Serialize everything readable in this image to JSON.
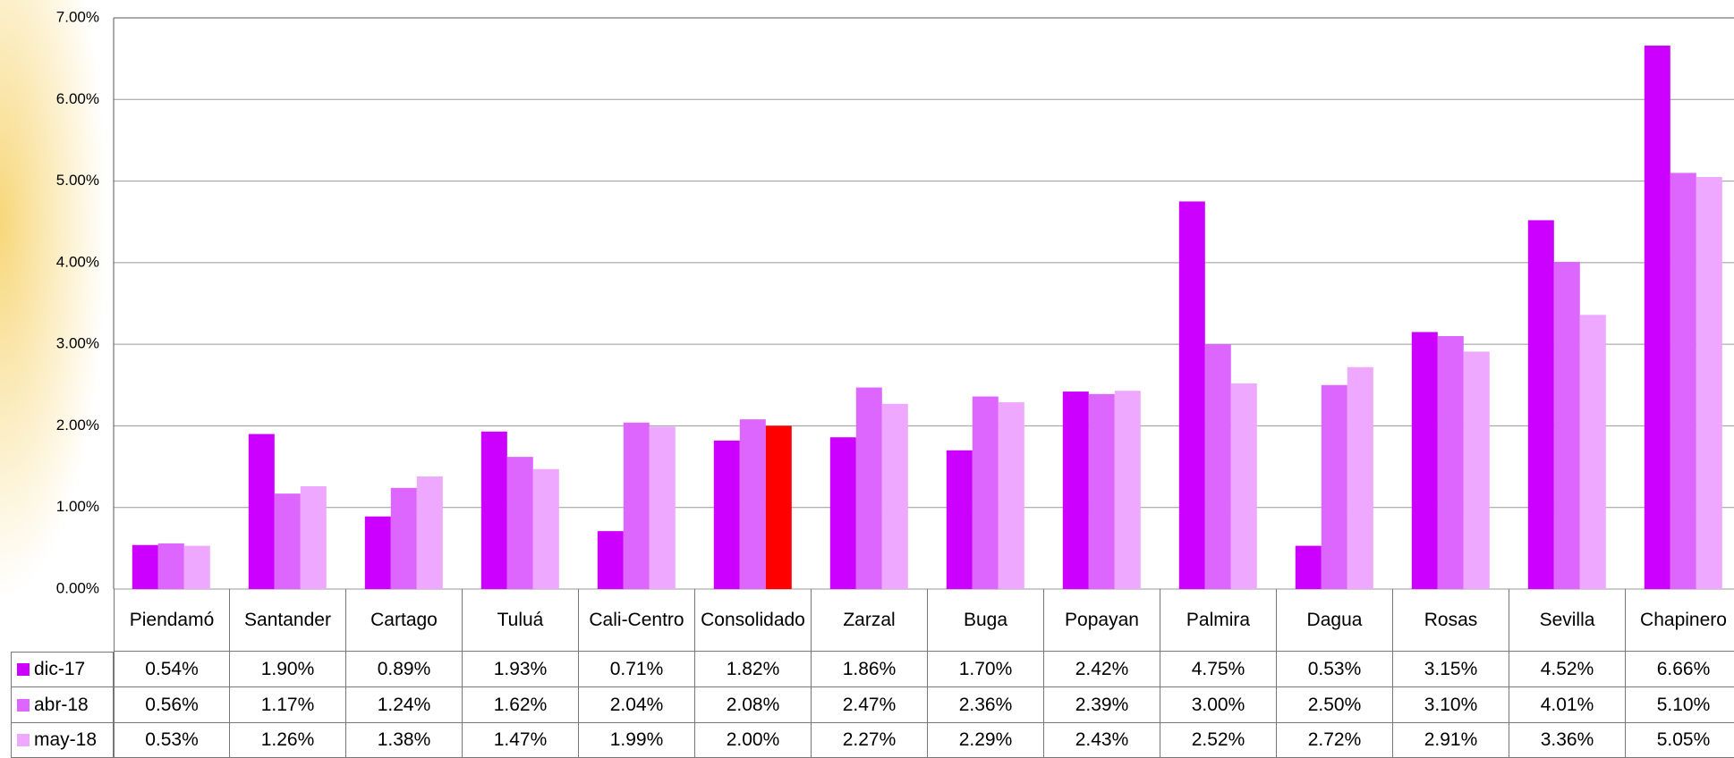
{
  "chart_data": {
    "type": "bar",
    "categories": [
      "Piendamó",
      "Santander",
      "Cartago",
      "Tuluá",
      "Cali-Centro",
      "Consolidado",
      "Zarzal",
      "Buga",
      "Popayan",
      "Palmira",
      "Dagua",
      "Rosas",
      "Sevilla",
      "Chapinero"
    ],
    "series": [
      {
        "name": "dic-17",
        "color": "#cc00ff",
        "values": [
          0.54,
          1.9,
          0.89,
          1.93,
          0.71,
          1.82,
          1.86,
          1.7,
          2.42,
          4.75,
          0.53,
          3.15,
          4.52,
          6.66
        ],
        "value_labels": [
          "0.54%",
          "1.90%",
          "0.89%",
          "1.93%",
          "0.71%",
          "1.82%",
          "1.86%",
          "1.70%",
          "2.42%",
          "4.75%",
          "0.53%",
          "3.15%",
          "4.52%",
          "6.66%"
        ]
      },
      {
        "name": "abr-18",
        "color": "#dd66ff",
        "values": [
          0.56,
          1.17,
          1.24,
          1.62,
          2.04,
          2.08,
          2.47,
          2.36,
          2.39,
          3.0,
          2.5,
          3.1,
          4.01,
          5.1
        ],
        "value_labels": [
          "0.56%",
          "1.17%",
          "1.24%",
          "1.62%",
          "2.04%",
          "2.08%",
          "2.47%",
          "2.36%",
          "2.39%",
          "3.00%",
          "2.50%",
          "3.10%",
          "4.01%",
          "5.10%"
        ]
      },
      {
        "name": "may-18",
        "color": "#eea8ff",
        "colors": [
          "#eea8ff",
          "#eea8ff",
          "#eea8ff",
          "#eea8ff",
          "#eea8ff",
          "#ff0000",
          "#eea8ff",
          "#eea8ff",
          "#eea8ff",
          "#eea8ff",
          "#eea8ff",
          "#eea8ff",
          "#eea8ff",
          "#eea8ff"
        ],
        "values": [
          0.53,
          1.26,
          1.38,
          1.47,
          1.99,
          2.0,
          2.27,
          2.29,
          2.43,
          2.52,
          2.72,
          2.91,
          3.36,
          5.05
        ],
        "value_labels": [
          "0.53%",
          "1.26%",
          "1.38%",
          "1.47%",
          "1.99%",
          "2.00%",
          "2.27%",
          "2.29%",
          "2.43%",
          "2.52%",
          "2.72%",
          "2.91%",
          "3.36%",
          "5.05%"
        ]
      }
    ],
    "ylim": [
      0,
      7
    ],
    "yticks": [
      {
        "value": 0,
        "label": "0.00%"
      },
      {
        "value": 1,
        "label": "1.00%"
      },
      {
        "value": 2,
        "label": "2.00%"
      },
      {
        "value": 3,
        "label": "3.00%"
      },
      {
        "value": 4,
        "label": "4.00%"
      },
      {
        "value": 5,
        "label": "5.00%"
      },
      {
        "value": 6,
        "label": "6.00%"
      },
      {
        "value": 7,
        "label": "7.00%"
      }
    ],
    "grid": true
  }
}
